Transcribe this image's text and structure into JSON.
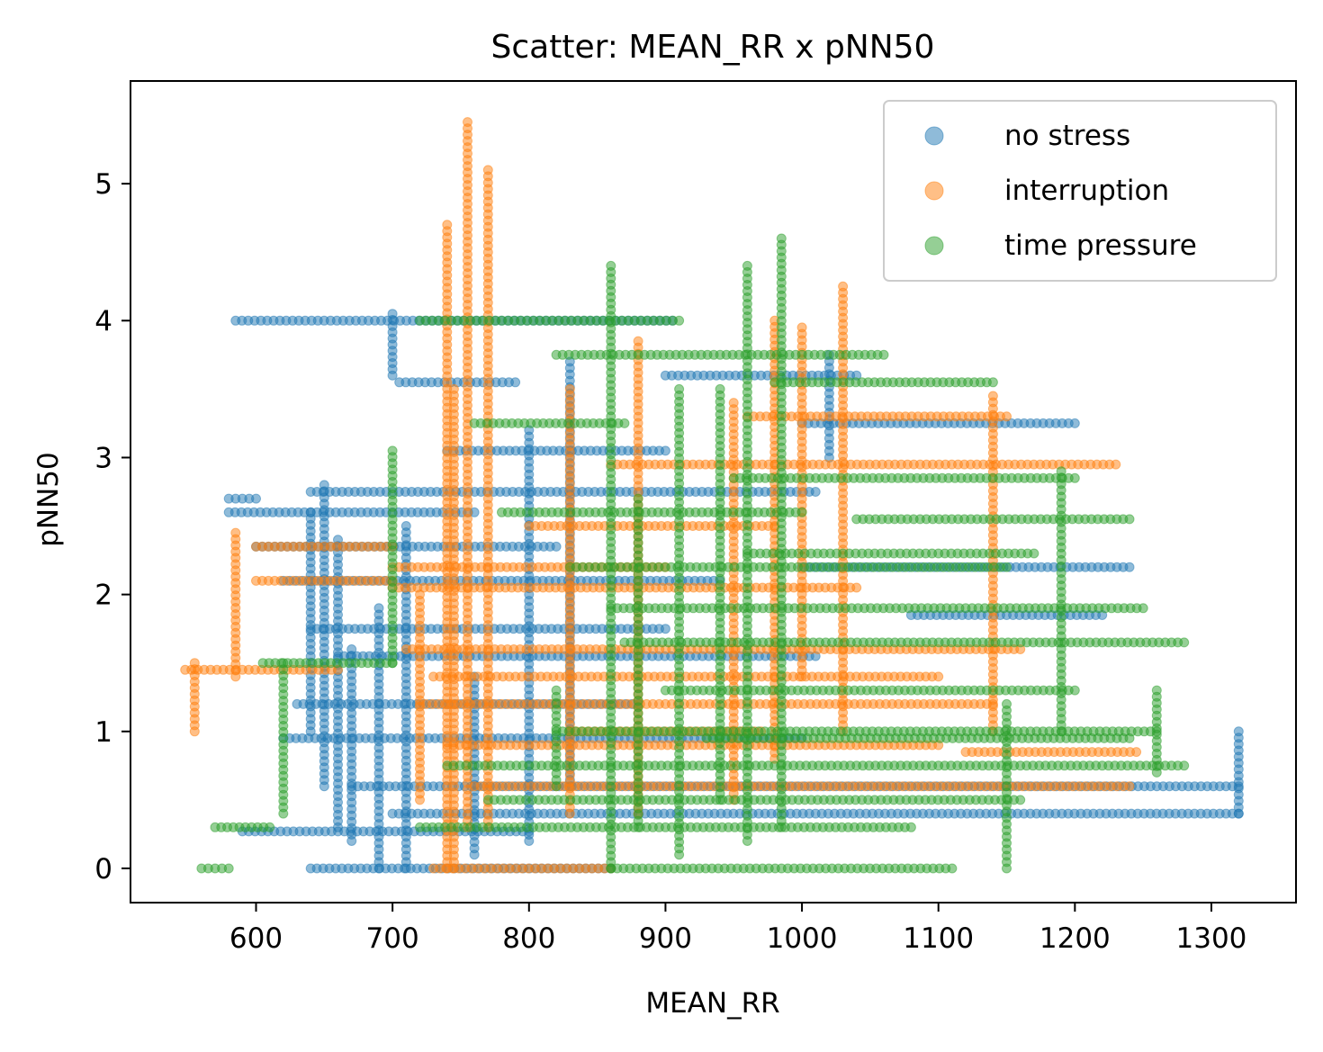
{
  "chart_data": {
    "type": "scatter",
    "title": "Scatter: MEAN_RR x pNN50",
    "xlabel": "MEAN_RR",
    "ylabel": "pNN50",
    "xlim": [
      508,
      1362
    ],
    "ylim": [
      -0.25,
      5.75
    ],
    "x_ticks": [
      600,
      700,
      800,
      900,
      1000,
      1100,
      1200,
      1300
    ],
    "y_ticks": [
      0,
      1,
      2,
      3,
      4,
      5
    ],
    "x_tick_labels": [
      "600",
      "700",
      "800",
      "900",
      "1000",
      "1100",
      "1200",
      "1300"
    ],
    "y_tick_labels": [
      "0",
      "1",
      "2",
      "3",
      "4",
      "5"
    ],
    "grid": false,
    "legend_position": "top-right",
    "marker_alpha": 0.5,
    "series": [
      {
        "name": "no stress",
        "color": "#1f77b4",
        "segments": [
          {
            "h": [
              585,
              905,
              4.0
            ]
          },
          {
            "h": [
              705,
              790,
              3.55
            ]
          },
          {
            "h": [
              640,
              1010,
              2.75
            ]
          },
          {
            "h": [
              600,
              820,
              2.35
            ]
          },
          {
            "h": [
              580,
              760,
              2.6
            ]
          },
          {
            "h": [
              620,
              940,
              2.1
            ]
          },
          {
            "h": [
              640,
              900,
              1.75
            ]
          },
          {
            "h": [
              660,
              1010,
              1.55
            ]
          },
          {
            "h": [
              630,
              880,
              1.2
            ]
          },
          {
            "h": [
              620,
              1000,
              0.95
            ]
          },
          {
            "h": [
              670,
              1320,
              0.6
            ]
          },
          {
            "h": [
              700,
              1320,
              0.4
            ]
          },
          {
            "h": [
              590,
              800,
              0.27
            ]
          },
          {
            "h": [
              640,
              860,
              0.0
            ]
          },
          {
            "h": [
              1000,
              1240,
              2.2
            ]
          },
          {
            "h": [
              1080,
              1220,
              1.85
            ]
          },
          {
            "h": [
              1000,
              1200,
              3.25
            ]
          },
          {
            "h": [
              900,
              1040,
              3.6
            ]
          },
          {
            "h": [
              740,
              900,
              3.05
            ]
          },
          {
            "h": [
              580,
              600,
              2.7
            ]
          },
          {
            "v": [
              690,
              0.0,
              1.9
            ]
          },
          {
            "v": [
              670,
              0.2,
              1.6
            ]
          },
          {
            "v": [
              650,
              0.6,
              2.8
            ]
          },
          {
            "v": [
              660,
              0.3,
              2.4
            ]
          },
          {
            "v": [
              710,
              0.0,
              2.5
            ]
          },
          {
            "v": [
              760,
              0.1,
              1.4
            ]
          },
          {
            "v": [
              800,
              0.2,
              3.2
            ]
          },
          {
            "v": [
              830,
              0.6,
              3.7
            ]
          },
          {
            "v": [
              1020,
              3.0,
              3.75
            ]
          },
          {
            "v": [
              700,
              3.6,
              4.05
            ]
          },
          {
            "v": [
              640,
              1.0,
              2.6
            ]
          },
          {
            "v": [
              1320,
              0.4,
              1.0
            ]
          }
        ]
      },
      {
        "name": "interruption",
        "color": "#ff7f0e",
        "segments": [
          {
            "h": [
              548,
              660,
              1.45
            ]
          },
          {
            "h": [
              600,
              700,
              2.1
            ]
          },
          {
            "h": [
              710,
              1160,
              1.6
            ]
          },
          {
            "h": [
              700,
              1040,
              2.05
            ]
          },
          {
            "h": [
              730,
              1100,
              1.4
            ]
          },
          {
            "h": [
              720,
              1140,
              1.2
            ]
          },
          {
            "h": [
              740,
              1100,
              0.9
            ]
          },
          {
            "h": [
              760,
              1240,
              0.6
            ]
          },
          {
            "h": [
              730,
              860,
              0.0
            ]
          },
          {
            "h": [
              800,
              980,
              2.5
            ]
          },
          {
            "h": [
              860,
              1230,
              2.95
            ]
          },
          {
            "h": [
              960,
              1150,
              3.3
            ]
          },
          {
            "h": [
              600,
              700,
              2.35
            ]
          },
          {
            "h": [
              700,
              900,
              2.2
            ]
          },
          {
            "h": [
              1120,
              1245,
              0.85
            ]
          },
          {
            "h": [
              830,
              970,
              1.0
            ]
          },
          {
            "v": [
              755,
              0.3,
              5.45
            ]
          },
          {
            "v": [
              770,
              0.3,
              5.1
            ]
          },
          {
            "v": [
              740,
              0.0,
              4.7
            ]
          },
          {
            "v": [
              720,
              0.5,
              2.0
            ]
          },
          {
            "v": [
              745,
              0.0,
              3.5
            ]
          },
          {
            "v": [
              555,
              1.0,
              1.5
            ]
          },
          {
            "v": [
              585,
              1.4,
              2.45
            ]
          },
          {
            "v": [
              980,
              0.8,
              4.0
            ]
          },
          {
            "v": [
              1030,
              1.0,
              4.25
            ]
          },
          {
            "v": [
              1000,
              1.4,
              3.95
            ]
          },
          {
            "v": [
              950,
              0.5,
              3.4
            ]
          },
          {
            "v": [
              880,
              0.4,
              3.85
            ]
          },
          {
            "v": [
              1140,
              1.0,
              3.45
            ]
          },
          {
            "v": [
              830,
              0.4,
              3.5
            ]
          }
        ]
      },
      {
        "name": "time pressure",
        "color": "#2ca02c",
        "segments": [
          {
            "h": [
              560,
              580,
              0.0
            ]
          },
          {
            "h": [
              570,
              610,
              0.3
            ]
          },
          {
            "h": [
              605,
              700,
              1.5
            ]
          },
          {
            "h": [
              720,
              910,
              4.0
            ]
          },
          {
            "h": [
              760,
              870,
              3.25
            ]
          },
          {
            "h": [
              780,
              1000,
              2.6
            ]
          },
          {
            "h": [
              830,
              1150,
              2.2
            ]
          },
          {
            "h": [
              860,
              1250,
              1.9
            ]
          },
          {
            "h": [
              870,
              1280,
              1.65
            ]
          },
          {
            "h": [
              900,
              1200,
              1.3
            ]
          },
          {
            "h": [
              820,
              1260,
              1.0
            ]
          },
          {
            "h": [
              740,
              1280,
              0.75
            ]
          },
          {
            "h": [
              770,
              1160,
              0.5
            ]
          },
          {
            "h": [
              720,
              1080,
              0.3
            ]
          },
          {
            "h": [
              860,
              1110,
              0.0
            ]
          },
          {
            "h": [
              980,
              1140,
              3.55
            ]
          },
          {
            "h": [
              950,
              1200,
              2.85
            ]
          },
          {
            "h": [
              820,
              1060,
              3.75
            ]
          },
          {
            "h": [
              1040,
              1240,
              2.55
            ]
          },
          {
            "h": [
              930,
              1240,
              0.95
            ]
          },
          {
            "h": [
              960,
              1170,
              2.3
            ]
          },
          {
            "v": [
              985,
              0.3,
              4.6
            ]
          },
          {
            "v": [
              960,
              0.2,
              4.4
            ]
          },
          {
            "v": [
              940,
              0.5,
              3.5
            ]
          },
          {
            "v": [
              860,
              0.0,
              4.4
            ]
          },
          {
            "v": [
              620,
              0.4,
              1.5
            ]
          },
          {
            "v": [
              700,
              1.5,
              3.05
            ]
          },
          {
            "v": [
              1190,
              1.0,
              2.9
            ]
          },
          {
            "v": [
              1260,
              0.7,
              1.3
            ]
          },
          {
            "v": [
              1150,
              0.0,
              1.2
            ]
          },
          {
            "v": [
              910,
              0.1,
              3.5
            ]
          },
          {
            "v": [
              880,
              0.3,
              2.7
            ]
          },
          {
            "v": [
              820,
              0.6,
              1.3
            ]
          }
        ]
      }
    ]
  }
}
